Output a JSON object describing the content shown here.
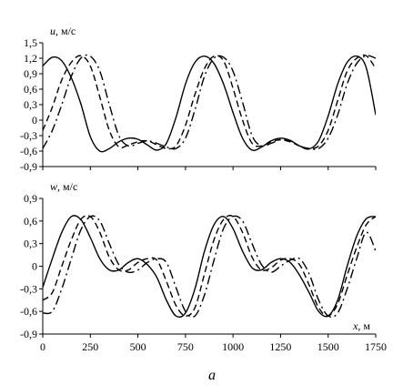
{
  "panel_label": "a",
  "chart_data": [
    {
      "type": "line",
      "ylabel_var": "u",
      "ylabel_unit": ", м/с",
      "ylim": [
        -0.9,
        1.5
      ],
      "yticks": [
        1.5,
        1.2,
        0.9,
        0.6,
        0.3,
        0,
        -0.3,
        -0.6,
        -0.9
      ],
      "ytick_labels": [
        "1,5",
        "1,2",
        "0,9",
        "0,6",
        "0,3",
        "0",
        "-0,3",
        "-0,6",
        "-0,9"
      ],
      "xlim": [
        0,
        1750
      ],
      "xticks": [
        0,
        250,
        500,
        750,
        1000,
        1250,
        1500,
        1750
      ],
      "series": [
        {
          "style": "solid",
          "x": [
            0,
            50,
            100,
            150,
            200,
            250,
            300,
            350,
            400,
            450,
            500,
            550,
            600,
            650,
            700,
            750,
            800,
            850,
            900,
            950,
            1000,
            1050,
            1100,
            1150,
            1200,
            1250,
            1300,
            1350,
            1400,
            1450,
            1500,
            1550,
            1600,
            1650,
            1700,
            1750
          ],
          "y": [
            1.05,
            1.22,
            1.15,
            0.82,
            0.32,
            -0.32,
            -0.6,
            -0.55,
            -0.42,
            -0.35,
            -0.37,
            -0.48,
            -0.58,
            -0.45,
            0.05,
            0.7,
            1.12,
            1.24,
            1.1,
            0.7,
            0.15,
            -0.35,
            -0.58,
            -0.52,
            -0.4,
            -0.35,
            -0.39,
            -0.5,
            -0.56,
            -0.4,
            0.08,
            0.7,
            1.12,
            1.24,
            1.02,
            0.1
          ]
        },
        {
          "style": "dashed",
          "x": [
            0,
            50,
            100,
            150,
            200,
            250,
            300,
            350,
            400,
            450,
            500,
            550,
            600,
            650,
            700,
            750,
            800,
            850,
            900,
            950,
            1000,
            1050,
            1100,
            1150,
            1200,
            1250,
            1300,
            1350,
            1400,
            1450,
            1500,
            1550,
            1600,
            1650,
            1700,
            1750
          ],
          "y": [
            -0.2,
            0.25,
            0.78,
            1.12,
            1.25,
            1.05,
            0.45,
            -0.2,
            -0.52,
            -0.48,
            -0.42,
            -0.4,
            -0.48,
            -0.55,
            -0.5,
            -0.1,
            0.5,
            1.0,
            1.24,
            1.15,
            0.62,
            0.0,
            -0.45,
            -0.5,
            -0.42,
            -0.38,
            -0.42,
            -0.5,
            -0.55,
            -0.5,
            -0.2,
            0.38,
            0.95,
            1.2,
            1.25,
            1.0
          ]
        },
        {
          "style": "dashdot",
          "x": [
            0,
            50,
            100,
            150,
            200,
            250,
            300,
            350,
            400,
            450,
            500,
            550,
            600,
            650,
            700,
            750,
            800,
            850,
            900,
            950,
            1000,
            1050,
            1100,
            1150,
            1200,
            1250,
            1300,
            1350,
            1400,
            1450,
            1500,
            1550,
            1600,
            1650,
            1700,
            1750
          ],
          "y": [
            -0.55,
            -0.2,
            0.3,
            0.85,
            1.2,
            1.24,
            0.95,
            0.3,
            -0.3,
            -0.5,
            -0.45,
            -0.4,
            -0.45,
            -0.52,
            -0.55,
            -0.35,
            0.2,
            0.85,
            1.2,
            1.22,
            0.95,
            0.35,
            -0.3,
            -0.5,
            -0.45,
            -0.38,
            -0.4,
            -0.5,
            -0.55,
            -0.55,
            -0.35,
            0.1,
            0.7,
            1.1,
            1.25,
            1.2
          ]
        }
      ]
    },
    {
      "type": "line",
      "ylabel_var": "w",
      "ylabel_unit": ", м/с",
      "xlabel_var": "x",
      "xlabel_unit": ", м",
      "ylim": [
        -0.9,
        0.9
      ],
      "yticks": [
        0.9,
        0.6,
        0.3,
        0,
        -0.3,
        -0.6,
        -0.9
      ],
      "ytick_labels": [
        "0,9",
        "0,6",
        "0,3",
        "0",
        "-0,3",
        "-0,6",
        "-0,9"
      ],
      "xlim": [
        0,
        1750
      ],
      "xticks": [
        0,
        250,
        500,
        750,
        1000,
        1250,
        1500,
        1750
      ],
      "xtick_labels": [
        "0",
        "250",
        "500",
        "750",
        "1000",
        "1250",
        "1500",
        "1750"
      ],
      "series": [
        {
          "style": "solid",
          "x": [
            0,
            50,
            100,
            150,
            200,
            250,
            300,
            350,
            400,
            450,
            500,
            550,
            600,
            650,
            700,
            750,
            800,
            850,
            900,
            950,
            1000,
            1050,
            1100,
            1150,
            1200,
            1250,
            1300,
            1350,
            1400,
            1450,
            1500,
            1550,
            1600,
            1650,
            1700,
            1750
          ],
          "y": [
            -0.28,
            0.1,
            0.45,
            0.66,
            0.62,
            0.38,
            0.1,
            -0.05,
            -0.05,
            0.05,
            0.1,
            0.02,
            -0.15,
            -0.45,
            -0.66,
            -0.62,
            -0.3,
            0.2,
            0.55,
            0.66,
            0.5,
            0.2,
            -0.02,
            -0.05,
            0.05,
            0.1,
            0.05,
            -0.12,
            -0.35,
            -0.6,
            -0.66,
            -0.45,
            0.0,
            0.4,
            0.63,
            0.66
          ]
        },
        {
          "style": "dashed",
          "x": [
            0,
            50,
            100,
            150,
            200,
            250,
            300,
            350,
            400,
            450,
            500,
            550,
            600,
            650,
            700,
            750,
            800,
            850,
            900,
            950,
            1000,
            1050,
            1100,
            1150,
            1200,
            1250,
            1300,
            1350,
            1400,
            1450,
            1500,
            1550,
            1600,
            1650,
            1700,
            1750
          ],
          "y": [
            -0.45,
            -0.35,
            0.0,
            0.35,
            0.62,
            0.66,
            0.45,
            0.12,
            -0.05,
            -0.05,
            0.05,
            0.1,
            0.08,
            -0.2,
            -0.52,
            -0.66,
            -0.55,
            -0.1,
            0.35,
            0.62,
            0.66,
            0.45,
            0.12,
            -0.05,
            -0.02,
            0.08,
            0.1,
            0.02,
            -0.25,
            -0.55,
            -0.66,
            -0.5,
            -0.12,
            0.25,
            0.55,
            0.66
          ]
        },
        {
          "style": "dashdot",
          "x": [
            0,
            50,
            100,
            150,
            200,
            250,
            300,
            350,
            400,
            450,
            500,
            550,
            600,
            650,
            700,
            750,
            800,
            850,
            900,
            950,
            1000,
            1050,
            1100,
            1150,
            1200,
            1250,
            1300,
            1350,
            1400,
            1450,
            1500,
            1550,
            1600,
            1650,
            1700,
            1750
          ],
          "y": [
            -0.62,
            -0.6,
            -0.3,
            0.1,
            0.48,
            0.66,
            0.6,
            0.3,
            0.02,
            -0.08,
            -0.05,
            0.05,
            0.1,
            0.05,
            -0.28,
            -0.6,
            -0.66,
            -0.38,
            0.08,
            0.5,
            0.66,
            0.6,
            0.3,
            0.02,
            -0.08,
            0.0,
            0.08,
            0.1,
            -0.1,
            -0.45,
            -0.66,
            -0.62,
            -0.3,
            0.1,
            0.45,
            0.2
          ]
        }
      ]
    }
  ]
}
